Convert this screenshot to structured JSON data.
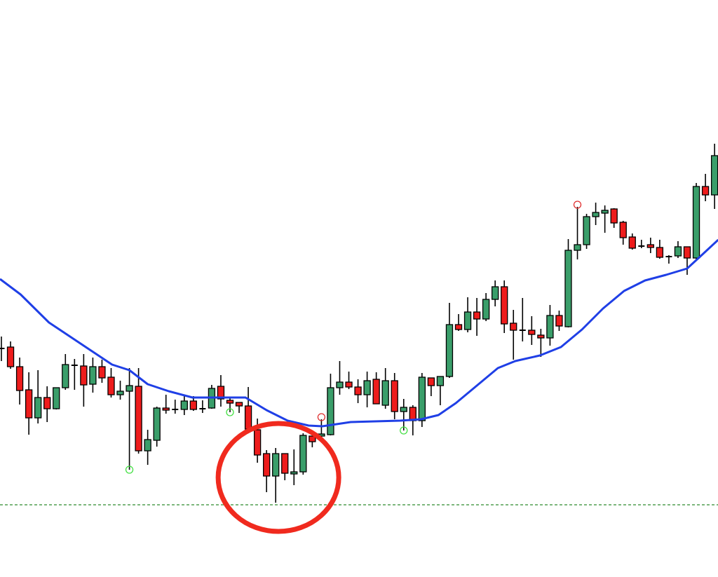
{
  "chart_data": {
    "type": "candlestick",
    "title": "",
    "xlabel": "",
    "ylabel": "",
    "axes_visible": false,
    "grid": false,
    "ylim": [
      0,
      823
    ],
    "candle_fields": [
      "open",
      "high",
      "low",
      "close"
    ],
    "candles": [
      [
        326,
        343,
        308,
        326
      ],
      [
        328,
        336,
        297,
        300
      ],
      [
        300,
        313,
        246,
        266
      ],
      [
        267,
        292,
        203,
        227
      ],
      [
        227,
        295,
        219,
        256
      ],
      [
        256,
        272,
        221,
        240
      ],
      [
        240,
        270,
        239,
        270
      ],
      [
        270,
        318,
        267,
        303
      ],
      [
        302,
        311,
        267,
        302
      ],
      [
        301,
        318,
        243,
        274
      ],
      [
        275,
        313,
        263,
        300
      ],
      [
        300,
        310,
        277,
        284
      ],
      [
        285,
        298,
        256,
        260
      ],
      [
        260,
        280,
        253,
        265
      ],
      [
        265,
        298,
        153,
        273
      ],
      [
        272,
        298,
        176,
        180
      ],
      [
        180,
        210,
        160,
        196
      ],
      [
        195,
        243,
        186,
        241
      ],
      [
        241,
        260,
        233,
        238
      ],
      [
        239,
        253,
        233,
        239
      ],
      [
        239,
        258,
        231,
        251
      ],
      [
        251,
        258,
        237,
        239
      ],
      [
        240,
        252,
        234,
        240
      ],
      [
        241,
        274,
        240,
        269
      ],
      [
        272,
        288,
        243,
        254
      ],
      [
        252,
        256,
        235,
        248
      ],
      [
        249,
        249,
        234,
        244
      ],
      [
        244,
        271,
        208,
        211
      ],
      [
        210,
        226,
        163,
        174
      ],
      [
        176,
        181,
        121,
        144
      ],
      [
        144,
        184,
        106,
        176
      ],
      [
        176,
        176,
        138,
        148
      ],
      [
        147,
        182,
        131,
        150
      ],
      [
        150,
        205,
        146,
        202
      ],
      [
        201,
        201,
        185,
        193
      ],
      [
        201,
        225,
        198,
        204
      ],
      [
        203,
        290,
        202,
        270
      ],
      [
        270,
        308,
        260,
        278
      ],
      [
        278,
        293,
        268,
        271
      ],
      [
        271,
        282,
        248,
        260
      ],
      [
        260,
        293,
        242,
        280
      ],
      [
        282,
        292,
        247,
        247
      ],
      [
        245,
        298,
        240,
        280
      ],
      [
        280,
        291,
        225,
        236
      ],
      [
        236,
        254,
        209,
        242
      ],
      [
        242,
        245,
        202,
        223
      ],
      [
        223,
        291,
        214,
        285
      ],
      [
        284,
        284,
        258,
        273
      ],
      [
        273,
        286,
        245,
        286
      ],
      [
        286,
        391,
        284,
        360
      ],
      [
        360,
        375,
        351,
        353
      ],
      [
        353,
        399,
        349,
        378
      ],
      [
        378,
        398,
        344,
        368
      ],
      [
        368,
        405,
        365,
        396
      ],
      [
        396,
        423,
        386,
        414
      ],
      [
        414,
        423,
        348,
        361
      ],
      [
        362,
        381,
        310,
        352
      ],
      [
        352,
        398,
        336,
        352
      ],
      [
        352,
        372,
        331,
        346
      ],
      [
        345,
        354,
        314,
        341
      ],
      [
        341,
        388,
        330,
        373
      ],
      [
        373,
        380,
        351,
        358
      ],
      [
        357,
        482,
        356,
        466
      ],
      [
        466,
        528,
        453,
        474
      ],
      [
        474,
        518,
        468,
        514
      ],
      [
        514,
        534,
        502,
        520
      ],
      [
        519,
        530,
        491,
        523
      ],
      [
        525,
        526,
        498,
        505
      ],
      [
        506,
        508,
        474,
        484
      ],
      [
        485,
        490,
        467,
        469
      ],
      [
        472,
        481,
        469,
        472
      ],
      [
        474,
        484,
        462,
        470
      ],
      [
        470,
        481,
        454,
        456
      ],
      [
        457,
        459,
        447,
        457
      ],
      [
        458,
        479,
        455,
        471
      ],
      [
        471,
        471,
        431,
        455
      ],
      [
        455,
        562,
        453,
        557
      ],
      [
        557,
        575,
        536,
        545
      ],
      [
        545,
        618,
        525,
        601
      ]
    ],
    "moving_average": {
      "color": "#1f3fe6",
      "points": [
        [
          -0.15,
          425
        ],
        [
          2.1,
          403
        ],
        [
          5.2,
          363
        ],
        [
          7.5,
          343
        ],
        [
          9.8,
          323
        ],
        [
          12.1,
          303
        ],
        [
          14,
          295
        ],
        [
          16,
          275
        ],
        [
          18.3,
          265
        ],
        [
          20.9,
          256
        ],
        [
          26.7,
          256
        ],
        [
          29,
          238
        ],
        [
          31.3,
          223
        ],
        [
          33.6,
          216
        ],
        [
          35.1,
          215
        ],
        [
          38.2,
          221
        ],
        [
          43.6,
          223
        ],
        [
          45.9,
          225
        ],
        [
          47.8,
          231
        ],
        [
          49.7,
          248
        ],
        [
          52,
          273
        ],
        [
          54.3,
          298
        ],
        [
          56.2,
          308
        ],
        [
          58.9,
          316
        ],
        [
          61.2,
          328
        ],
        [
          63.5,
          353
        ],
        [
          65.8,
          383
        ],
        [
          68.1,
          408
        ],
        [
          70.4,
          423
        ],
        [
          72.7,
          431
        ],
        [
          75,
          440
        ],
        [
          76.5,
          458
        ],
        [
          78.4,
          481
        ]
      ]
    },
    "fractal_markers": {
      "low": {
        "color": "#44e044",
        "candles": [
          14,
          25,
          44
        ]
      },
      "high": {
        "color": "#e03030",
        "candles": [
          35,
          63
        ]
      }
    },
    "support_line": {
      "value": 103,
      "color": "#2e8b2e",
      "style": "dashed"
    },
    "highlight_annotation": {
      "shape": "circle",
      "color": "#f02a1e",
      "center_candle": 30.3,
      "center_value": 142
    },
    "colors": {
      "bull": "#3a9e6a",
      "bear": "#ee1c1c",
      "outline": "#000000"
    }
  }
}
